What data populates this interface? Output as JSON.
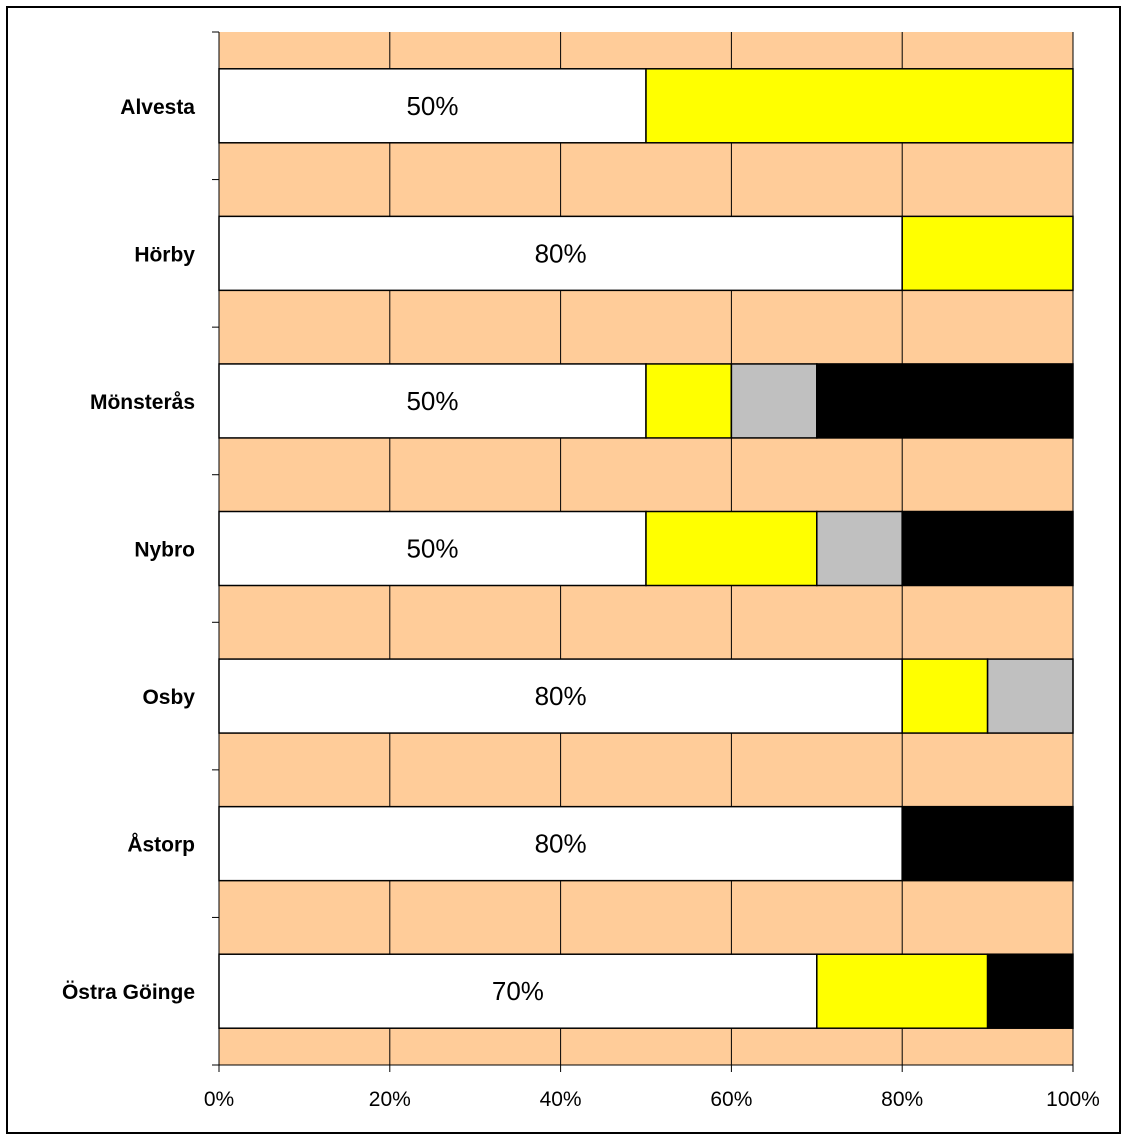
{
  "chart_data": {
    "type": "bar",
    "orientation": "horizontal",
    "stacked": "percent",
    "categories": [
      "Alvesta",
      "Hörby",
      "Mönsterås",
      "Nybro",
      "Osby",
      "Åstorp",
      "Östra Göinge"
    ],
    "series": [
      {
        "color": "#FFFFFF",
        "values": [
          50,
          80,
          50,
          50,
          80,
          80,
          70
        ]
      },
      {
        "color": "#FFFF00",
        "values": [
          50,
          20,
          10,
          20,
          10,
          0,
          20
        ]
      },
      {
        "color": "#C0C0C0",
        "values": [
          0,
          0,
          10,
          10,
          10,
          0,
          0
        ]
      },
      {
        "color": "#000000",
        "values": [
          0,
          0,
          30,
          20,
          0,
          20,
          10
        ]
      }
    ],
    "data_labels": [
      "50%",
      "80%",
      "50%",
      "50%",
      "80%",
      "80%",
      "70%"
    ],
    "x_ticks": [
      "0%",
      "20%",
      "40%",
      "60%",
      "80%",
      "100%"
    ],
    "xlim": [
      0,
      100
    ],
    "grid": "vertical",
    "plot_background": "#FFCC99",
    "title": "",
    "xlabel": "",
    "ylabel": "",
    "legend": "none"
  }
}
